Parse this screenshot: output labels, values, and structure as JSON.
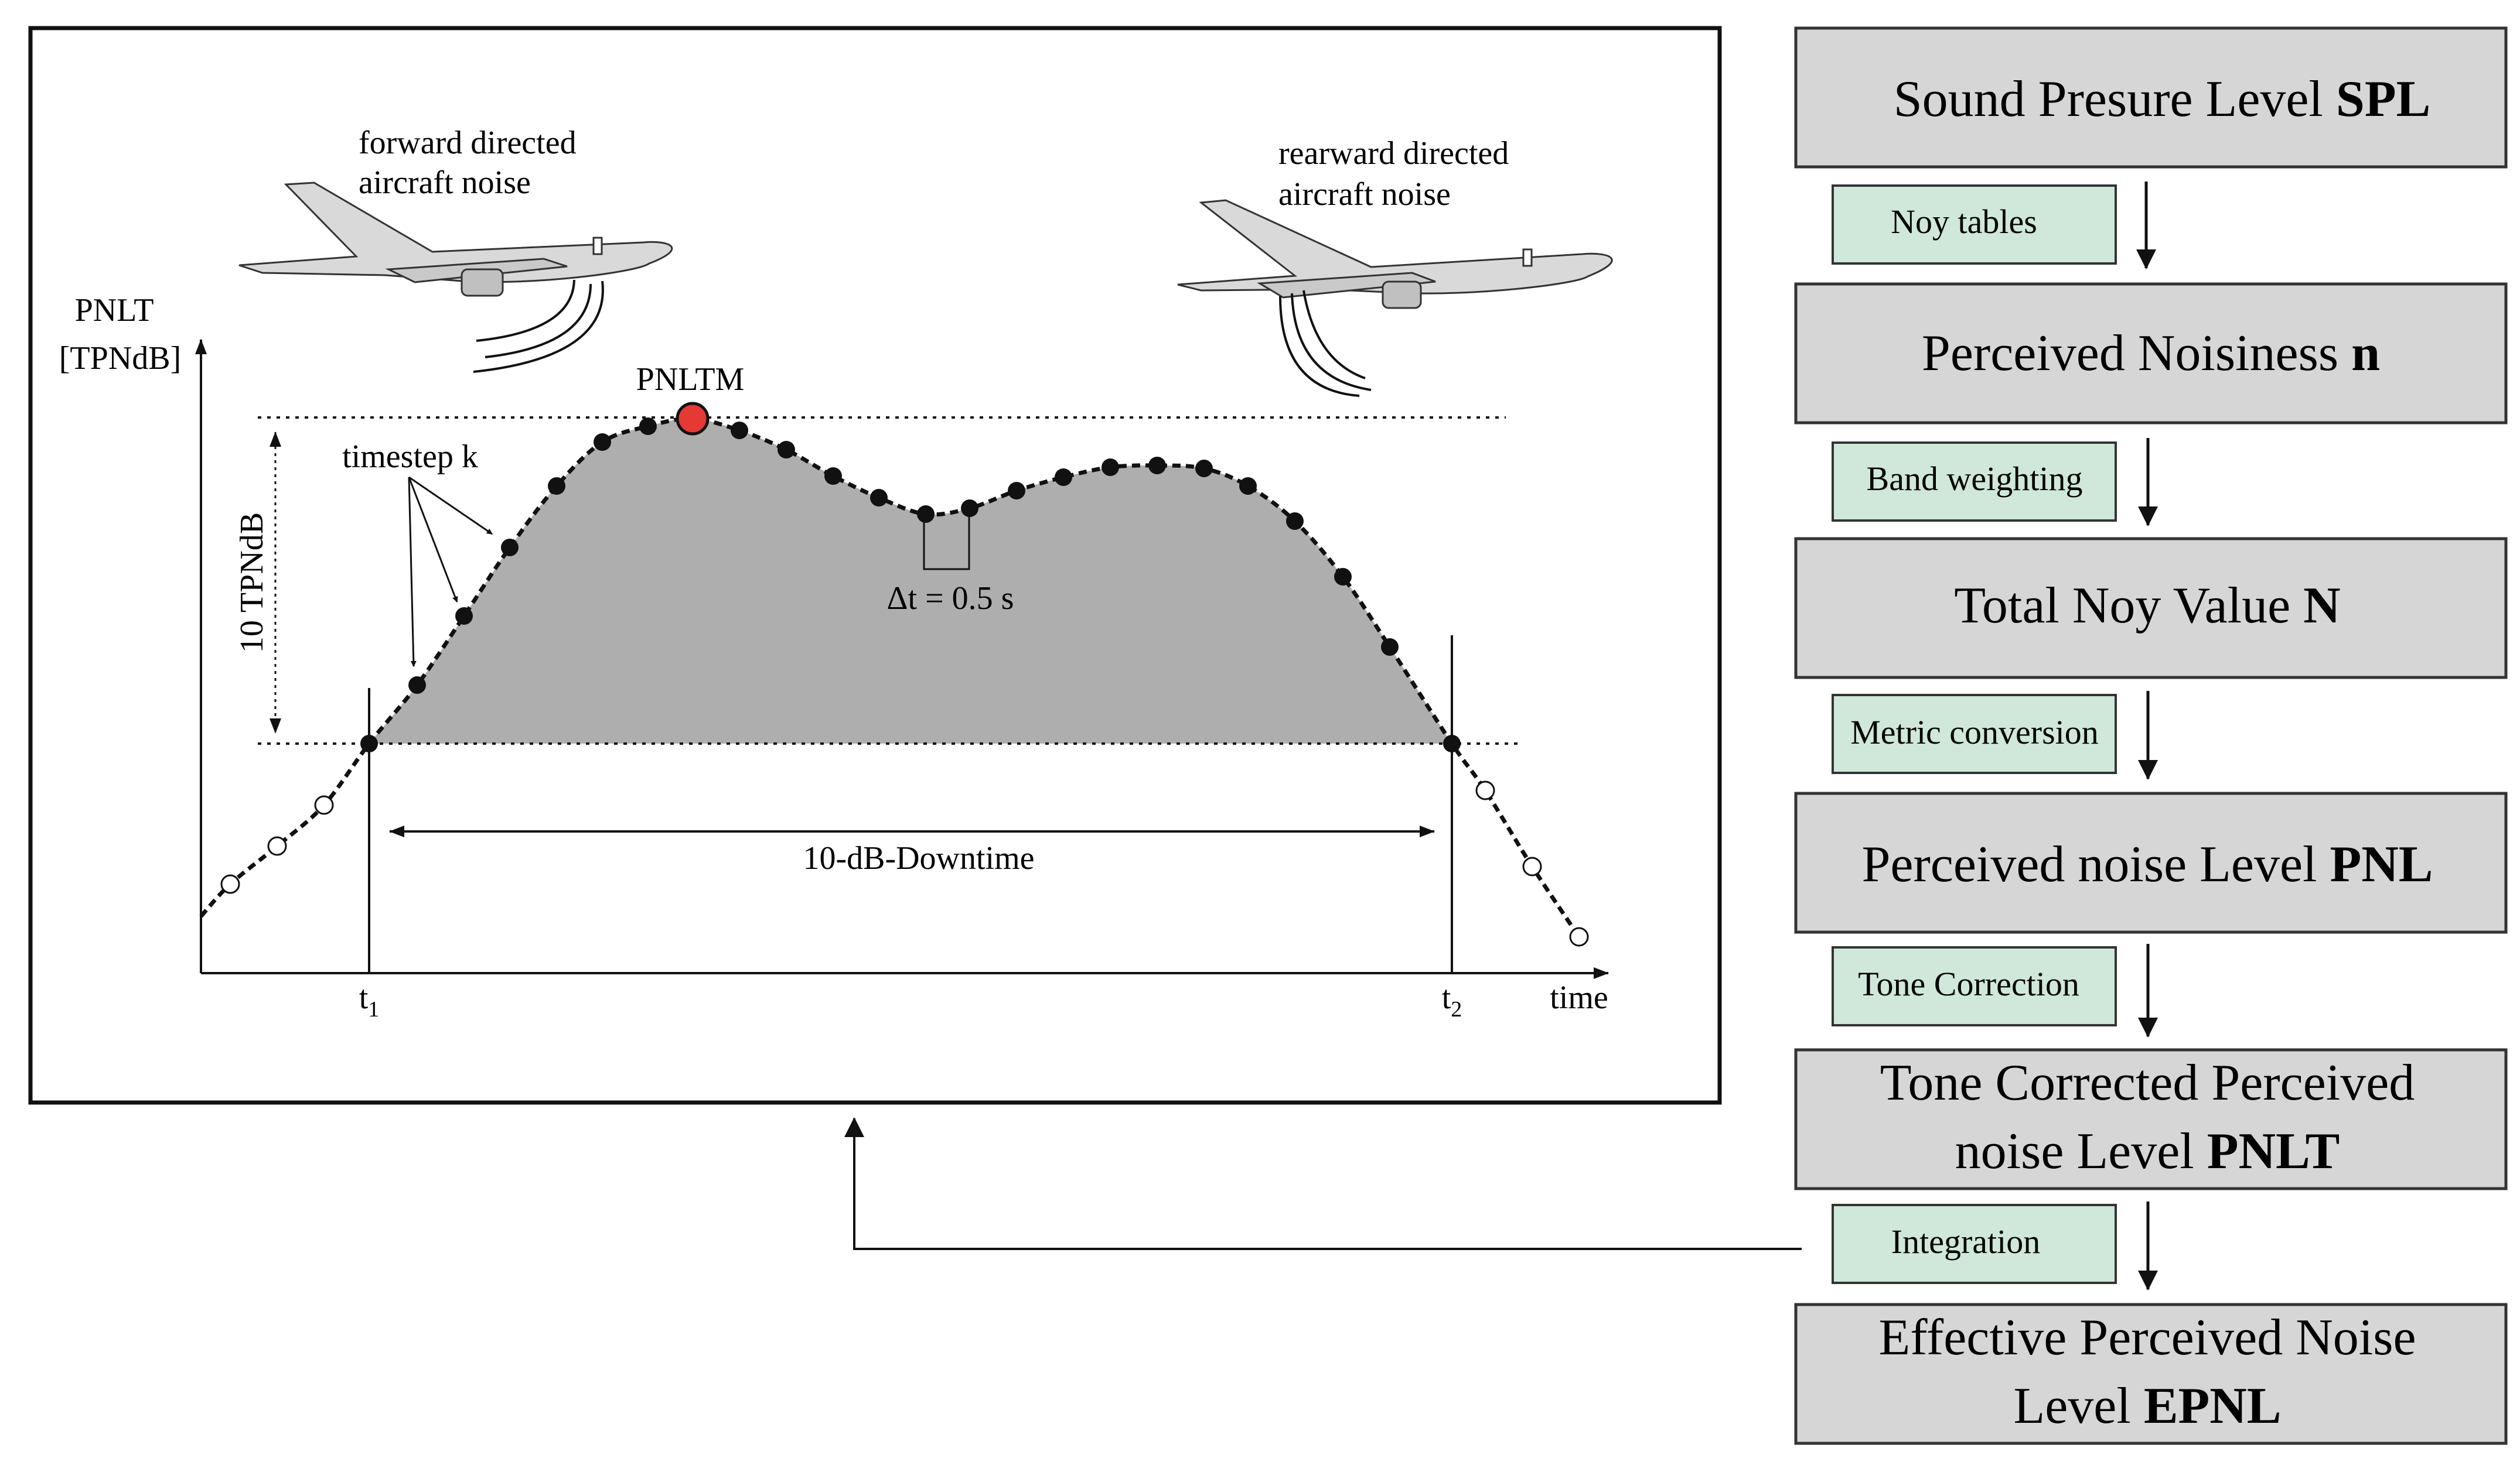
{
  "diagram": {
    "plot": {
      "y_axis_label_line1": "PNLT",
      "y_axis_label_line2": "[TPNdB]",
      "x_axis_label": "time",
      "t1_label": "t",
      "t1_subscript": "1",
      "t2_label": "t",
      "t2_subscript": "2",
      "peak_label": "PNLTM",
      "timestep_label": "timestep k",
      "range_label": "10 TPNdB",
      "dt_label": "Δt = 0.5 s",
      "downtime_label": "10-dB-Downtime",
      "forward_noise_line1": "forward directed",
      "forward_noise_line2": "aircraft noise",
      "rearward_noise_line1": "rearward directed",
      "rearward_noise_line2": "aircraft noise"
    },
    "flow": [
      {
        "text": "Sound Presure Level ",
        "bold": "SPL"
      },
      {
        "text": "Perceived Noisiness ",
        "bold": "n"
      },
      {
        "text": "Total Noy Value ",
        "bold": "N"
      },
      {
        "text": "Perceived noise Level ",
        "bold": "PNL"
      },
      {
        "line1": "Tone Corrected Perceived",
        "line2": "noise Level ",
        "bold": "PNLT"
      },
      {
        "line1": "Effective Perceived Noise",
        "line2": "Level ",
        "bold": "EPNL"
      }
    ],
    "steps": [
      "Noy tables",
      "Band weighting",
      "Metric conversion",
      "Tone Correction",
      "Integration"
    ],
    "colors": {
      "box_fill": "#d6d6d6",
      "step_fill": "#cfe8d9",
      "area_fill": "#aeaeae",
      "peak_fill": "#e53935"
    }
  }
}
